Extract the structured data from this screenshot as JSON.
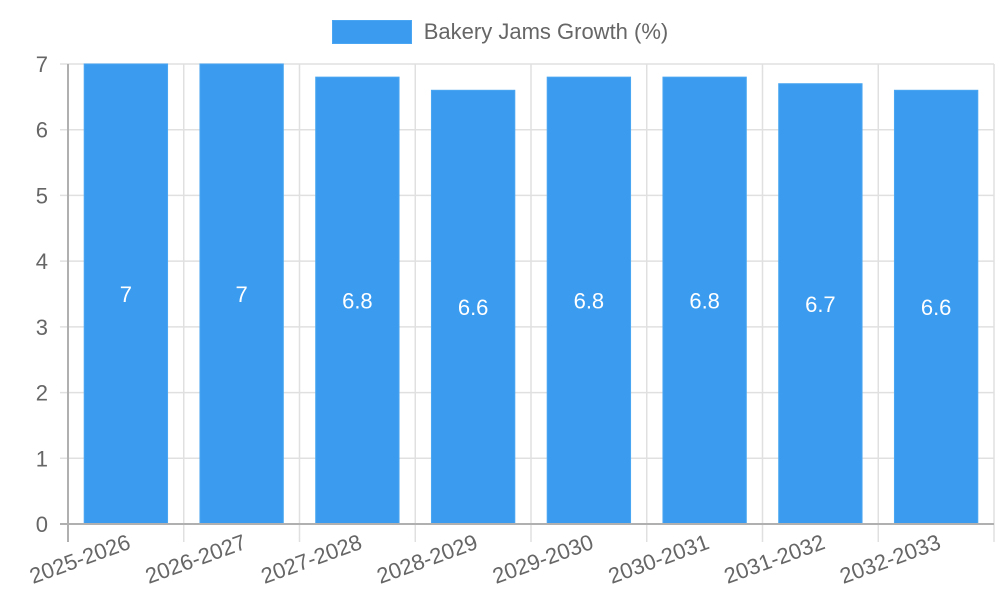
{
  "chart_data": {
    "type": "bar",
    "title": "",
    "xlabel": "",
    "ylabel": "",
    "categories": [
      "2025-2026",
      "2026-2027",
      "2027-2028",
      "2028-2029",
      "2029-2030",
      "2030-2031",
      "2031-2032",
      "2032-2033"
    ],
    "series": [
      {
        "name": "Bakery Jams Growth (%)",
        "values": [
          7,
          7,
          6.8,
          6.6,
          6.8,
          6.8,
          6.7,
          6.6
        ],
        "color": "#3a9bef"
      }
    ],
    "ylim": [
      0,
      7
    ],
    "yticks": [
      0,
      1,
      2,
      3,
      4,
      5,
      6,
      7
    ],
    "grid": true,
    "legend_position": "top",
    "data_labels": true
  },
  "legend": {
    "label": "Bakery Jams Growth (%)"
  }
}
